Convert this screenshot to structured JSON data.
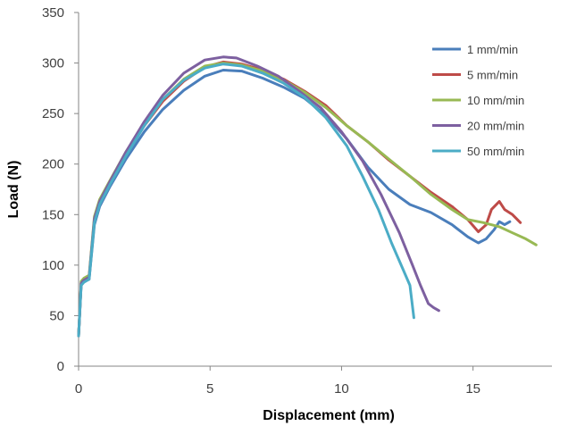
{
  "chart_data": {
    "type": "line",
    "title": "",
    "xlabel": "Displacement (mm)",
    "ylabel": "Load (N)",
    "xlim": [
      0,
      18
    ],
    "ylim": [
      0,
      350
    ],
    "xticks": [
      0,
      5,
      10,
      15
    ],
    "yticks": [
      0,
      50,
      100,
      150,
      200,
      250,
      300,
      350
    ],
    "grid": false,
    "legend_position": "top-right",
    "series": [
      {
        "name": "1 mm/min",
        "color": "#4a7ebb",
        "x": [
          0,
          0.1,
          0.2,
          0.4,
          0.6,
          0.8,
          1.2,
          1.8,
          2.5,
          3.2,
          4.0,
          4.8,
          5.5,
          6.2,
          7.0,
          7.8,
          8.6,
          9.4,
          10.2,
          11.0,
          11.8,
          12.6,
          13.4,
          14.2,
          14.8,
          15.2,
          15.5,
          15.8,
          16.0,
          16.2,
          16.4
        ],
        "y": [
          30,
          80,
          84,
          86,
          140,
          158,
          178,
          205,
          232,
          254,
          273,
          287,
          293,
          292,
          285,
          276,
          265,
          248,
          225,
          197,
          175,
          160,
          152,
          140,
          128,
          122,
          126,
          135,
          143,
          140,
          143
        ]
      },
      {
        "name": "5 mm/min",
        "color": "#be4b48",
        "x": [
          0,
          0.1,
          0.2,
          0.4,
          0.6,
          0.8,
          1.2,
          1.8,
          2.5,
          3.2,
          4.0,
          4.8,
          5.5,
          6.2,
          7.0,
          7.8,
          8.6,
          9.4,
          10.2,
          11.0,
          11.8,
          12.6,
          13.4,
          14.2,
          14.8,
          15.2,
          15.5,
          15.7,
          16.0,
          16.2,
          16.5,
          16.8
        ],
        "y": [
          30,
          82,
          85,
          88,
          145,
          162,
          182,
          210,
          238,
          262,
          282,
          296,
          301,
          299,
          293,
          284,
          272,
          258,
          238,
          222,
          204,
          188,
          172,
          158,
          145,
          133,
          140,
          155,
          163,
          155,
          150,
          142
        ]
      },
      {
        "name": "10 mm/min",
        "color": "#98b954",
        "x": [
          0,
          0.1,
          0.2,
          0.4,
          0.6,
          0.8,
          1.2,
          1.8,
          2.5,
          3.2,
          4.0,
          4.8,
          5.5,
          6.2,
          7.0,
          7.8,
          8.6,
          9.4,
          10.2,
          11.0,
          11.8,
          12.6,
          13.4,
          14.2,
          14.8,
          15.4,
          16.0,
          16.5,
          17.0,
          17.4
        ],
        "y": [
          30,
          84,
          87,
          90,
          148,
          165,
          184,
          212,
          240,
          264,
          284,
          297,
          300,
          298,
          292,
          283,
          271,
          256,
          238,
          222,
          205,
          188,
          170,
          155,
          145,
          142,
          138,
          132,
          126,
          120
        ]
      },
      {
        "name": "20 mm/min",
        "color": "#7d60a0",
        "x": [
          0,
          0.1,
          0.2,
          0.4,
          0.6,
          0.8,
          1.2,
          1.8,
          2.5,
          3.2,
          4.0,
          4.8,
          5.5,
          6.0,
          6.8,
          7.6,
          8.4,
          9.2,
          10.0,
          10.8,
          11.5,
          12.2,
          12.7,
          13.0,
          13.3,
          13.5,
          13.7
        ],
        "y": [
          30,
          82,
          85,
          88,
          146,
          163,
          183,
          212,
          242,
          268,
          290,
          303,
          306,
          305,
          297,
          287,
          272,
          256,
          232,
          203,
          170,
          132,
          100,
          80,
          62,
          58,
          55
        ]
      },
      {
        "name": "50 mm/min",
        "color": "#4bacc6",
        "x": [
          0,
          0.1,
          0.2,
          0.4,
          0.6,
          0.8,
          1.2,
          1.8,
          2.5,
          3.2,
          4.0,
          4.8,
          5.5,
          6.2,
          7.0,
          7.8,
          8.6,
          9.4,
          10.2,
          10.8,
          11.4,
          11.9,
          12.3,
          12.6,
          12.75
        ],
        "y": [
          30,
          80,
          83,
          86,
          142,
          160,
          180,
          208,
          238,
          264,
          283,
          295,
          299,
          297,
          290,
          280,
          266,
          246,
          218,
          188,
          155,
          122,
          98,
          80,
          48
        ]
      }
    ]
  }
}
